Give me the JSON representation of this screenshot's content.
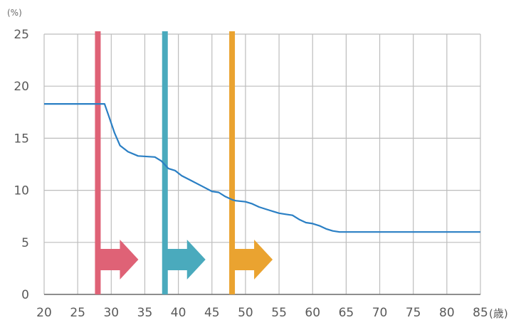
{
  "chart_data": {
    "type": "line",
    "title": "",
    "xlabel": "",
    "ylabel": "",
    "y_unit": "(%)",
    "x_unit": "(歳)",
    "xlim": [
      20,
      85
    ],
    "ylim": [
      0,
      25
    ],
    "xticks": [
      20,
      25,
      30,
      35,
      40,
      45,
      50,
      55,
      60,
      65,
      70,
      75,
      80,
      85
    ],
    "yticks": [
      0,
      5,
      10,
      15,
      20,
      25
    ],
    "grid": true,
    "series": [
      {
        "color": "#2a7fc4",
        "x": [
          20,
          29,
          29.6,
          30.5,
          31.3,
          32.5,
          34,
          36.5,
          37.5,
          38.5,
          39.5,
          40.5,
          42,
          43.5,
          45,
          46,
          47,
          48,
          48.5,
          50,
          51,
          52,
          53,
          54,
          55,
          56,
          57,
          58,
          59,
          60,
          61,
          62,
          63,
          64,
          70,
          85
        ],
        "y": [
          18.3,
          18.3,
          17.2,
          15.5,
          14.3,
          13.7,
          13.3,
          13.2,
          12.8,
          12.1,
          11.9,
          11.4,
          10.9,
          10.4,
          9.9,
          9.8,
          9.4,
          9.1,
          9.0,
          8.9,
          8.7,
          8.4,
          8.2,
          8.0,
          7.8,
          7.7,
          7.6,
          7.2,
          6.9,
          6.8,
          6.6,
          6.3,
          6.1,
          6.0,
          6.0,
          6.0
        ]
      }
    ],
    "markers": [
      {
        "x": 28,
        "color": "#df6276"
      },
      {
        "x": 38,
        "color": "#4aaabd"
      },
      {
        "x": 48,
        "color": "#eaa330"
      }
    ]
  }
}
